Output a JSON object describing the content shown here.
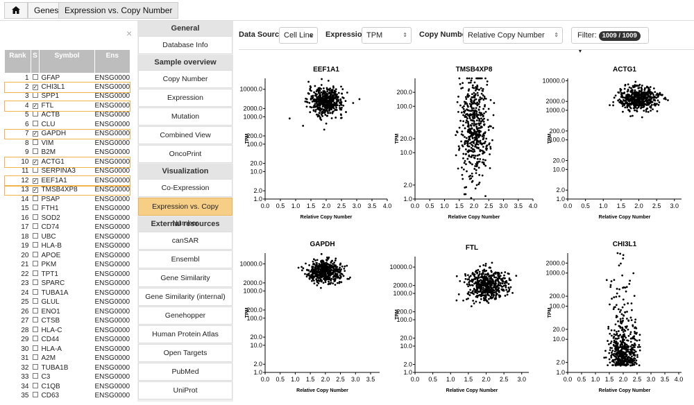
{
  "breadcrumb": {
    "home_icon": "home-icon",
    "items": [
      "Genes",
      "Expression vs. Copy Number"
    ]
  },
  "close_label": "×",
  "table": {
    "headers": [
      "Rank",
      "S",
      "Symbol",
      "Ens"
    ],
    "rows": [
      {
        "rank": "1",
        "checked": false,
        "symbol": "GFAP",
        "ens": "ENSG0000"
      },
      {
        "rank": "2",
        "checked": true,
        "symbol": "CHI3L1",
        "ens": "ENSG0000"
      },
      {
        "rank": "3",
        "checked": false,
        "symbol": "SPP1",
        "ens": "ENSG0000"
      },
      {
        "rank": "4",
        "checked": true,
        "symbol": "FTL",
        "ens": "ENSG0000"
      },
      {
        "rank": "5",
        "checked": false,
        "symbol": "ACTB",
        "ens": "ENSG0000"
      },
      {
        "rank": "6",
        "checked": false,
        "symbol": "CLU",
        "ens": "ENSG0000"
      },
      {
        "rank": "7",
        "checked": true,
        "symbol": "GAPDH",
        "ens": "ENSG0000"
      },
      {
        "rank": "8",
        "checked": false,
        "symbol": "VIM",
        "ens": "ENSG0000"
      },
      {
        "rank": "9",
        "checked": false,
        "symbol": "B2M",
        "ens": "ENSG0000"
      },
      {
        "rank": "10",
        "checked": true,
        "symbol": "ACTG1",
        "ens": "ENSG0000"
      },
      {
        "rank": "11",
        "checked": false,
        "symbol": "SERPINA3",
        "ens": "ENSG0000"
      },
      {
        "rank": "12",
        "checked": true,
        "symbol": "EEF1A1",
        "ens": "ENSG0000"
      },
      {
        "rank": "13",
        "checked": true,
        "symbol": "TMSB4XP8",
        "ens": "ENSG0000"
      },
      {
        "rank": "14",
        "checked": false,
        "symbol": "PSAP",
        "ens": "ENSG0000"
      },
      {
        "rank": "15",
        "checked": false,
        "symbol": "FTH1",
        "ens": "ENSG0000"
      },
      {
        "rank": "16",
        "checked": false,
        "symbol": "SOD2",
        "ens": "ENSG0000"
      },
      {
        "rank": "17",
        "checked": false,
        "symbol": "CD74",
        "ens": "ENSG0000"
      },
      {
        "rank": "18",
        "checked": false,
        "symbol": "UBC",
        "ens": "ENSG0000"
      },
      {
        "rank": "19",
        "checked": false,
        "symbol": "HLA-B",
        "ens": "ENSG0000"
      },
      {
        "rank": "20",
        "checked": false,
        "symbol": "APOE",
        "ens": "ENSG0000"
      },
      {
        "rank": "21",
        "checked": false,
        "symbol": "PKM",
        "ens": "ENSG0000"
      },
      {
        "rank": "22",
        "checked": false,
        "symbol": "TPT1",
        "ens": "ENSG0000"
      },
      {
        "rank": "23",
        "checked": false,
        "symbol": "SPARC",
        "ens": "ENSG0000"
      },
      {
        "rank": "24",
        "checked": false,
        "symbol": "TUBA1A",
        "ens": "ENSG0000"
      },
      {
        "rank": "25",
        "checked": false,
        "symbol": "GLUL",
        "ens": "ENSG0000"
      },
      {
        "rank": "26",
        "checked": false,
        "symbol": "ENO1",
        "ens": "ENSG0000"
      },
      {
        "rank": "27",
        "checked": false,
        "symbol": "CTSB",
        "ens": "ENSG0000"
      },
      {
        "rank": "28",
        "checked": false,
        "symbol": "HLA-C",
        "ens": "ENSG0000"
      },
      {
        "rank": "29",
        "checked": false,
        "symbol": "CD44",
        "ens": "ENSG0000"
      },
      {
        "rank": "30",
        "checked": false,
        "symbol": "HLA-A",
        "ens": "ENSG0000"
      },
      {
        "rank": "31",
        "checked": false,
        "symbol": "A2M",
        "ens": "ENSG0000"
      },
      {
        "rank": "32",
        "checked": false,
        "symbol": "TUBA1B",
        "ens": "ENSG0000"
      },
      {
        "rank": "33",
        "checked": false,
        "symbol": "C3",
        "ens": "ENSG0000"
      },
      {
        "rank": "34",
        "checked": false,
        "symbol": "C1QB",
        "ens": "ENSG0000"
      },
      {
        "rank": "35",
        "checked": false,
        "symbol": "CD63",
        "ens": "ENSG0000"
      }
    ]
  },
  "menu": {
    "sections": [
      {
        "title": "General",
        "items": [
          {
            "label": "Database Info",
            "active": false
          }
        ]
      },
      {
        "title": "Sample overview",
        "items": [
          {
            "label": "Copy Number",
            "active": false
          },
          {
            "label": "Expression",
            "active": false
          },
          {
            "label": "Mutation",
            "active": false
          },
          {
            "label": "Combined View",
            "active": false
          },
          {
            "label": "OncoPrint",
            "active": false
          }
        ]
      },
      {
        "title": "Visualization",
        "items": [
          {
            "label": "Co-Expression",
            "active": false
          },
          {
            "label": "Expression vs. Copy Number",
            "active": true
          }
        ]
      },
      {
        "title": "External resources",
        "items": [
          {
            "label": "canSAR",
            "active": false
          },
          {
            "label": "Ensembl",
            "active": false
          },
          {
            "label": "Gene Similarity",
            "active": false
          },
          {
            "label": "Gene Similarity (internal)",
            "active": false
          },
          {
            "label": "Genehopper",
            "active": false
          },
          {
            "label": "Human Protein Atlas",
            "active": false
          },
          {
            "label": "Open Targets",
            "active": false
          },
          {
            "label": "PubMed",
            "active": false
          },
          {
            "label": "UniProt",
            "active": false
          }
        ]
      }
    ]
  },
  "controls": {
    "data_source_label": "Data Source",
    "data_source_value": "Cell Line",
    "expression_label": "Expression",
    "expression_value": "TPM",
    "copy_number_label": "Copy Number",
    "copy_number_value": "Relative Copy Number",
    "filter_label": "Filter:",
    "filter_badge": "1009 / 1009"
  },
  "chart_data": [
    {
      "type": "scatter",
      "title": "EEF1A1",
      "xlabel": "Relative Copy Number",
      "ylabel": "TPM",
      "xlim": [
        0,
        4.0
      ],
      "ylim": [
        1,
        25000
      ],
      "yscale": "log",
      "xticks": [
        "0.0",
        "0.5",
        "1.0",
        "1.5",
        "2.0",
        "2.5",
        "3.0",
        "3.5",
        "4.0"
      ],
      "yticks": [
        "1.0",
        "2.0",
        "10.0",
        "20.0",
        "100.0",
        "200.0",
        "1000.0",
        "2000.0",
        "10000.0"
      ],
      "cluster": {
        "x_center": 2.0,
        "x_spread": 0.28,
        "y_center": 3500,
        "y_spread": 0.25
      }
    },
    {
      "type": "scatter",
      "title": "TMSB4XP8",
      "xlabel": "Relative Copy Number",
      "ylabel": "TPM",
      "xlim": [
        0,
        4.0
      ],
      "ylim": [
        1,
        400
      ],
      "yscale": "log",
      "xticks": [
        "0.0",
        "0.5",
        "1.0",
        "1.5",
        "2.0",
        "2.5",
        "3.0",
        "3.5",
        "4.0"
      ],
      "yticks": [
        "1.0",
        "2.0",
        "10.0",
        "20.0",
        "100.0",
        "200.0"
      ],
      "cluster": {
        "x_center": 2.0,
        "x_spread": 0.25,
        "y_center": 35,
        "y_spread": 0.55
      }
    },
    {
      "type": "scatter",
      "title": "ACTG1",
      "xlabel": "Relative Copy Number",
      "ylabel": "TPM",
      "xlim": [
        0,
        3.2
      ],
      "ylim": [
        1,
        12000
      ],
      "yscale": "log",
      "xticks": [
        "0.0",
        "0.5",
        "1.0",
        "1.5",
        "2.0",
        "2.5",
        "3.0"
      ],
      "yticks": [
        "1.0",
        "2.0",
        "10.0",
        "20.0",
        "100.0",
        "200.0",
        "1000.0",
        "2000.0",
        "10000.0"
      ],
      "cluster": {
        "x_center": 2.0,
        "x_spread": 0.28,
        "y_center": 2500,
        "y_spread": 0.2
      }
    },
    {
      "type": "scatter",
      "title": "GAPDH",
      "xlabel": "Relative Copy Number",
      "ylabel": "TPM",
      "xlim": [
        0,
        3.8
      ],
      "ylim": [
        1,
        25000
      ],
      "yscale": "log",
      "xticks": [
        "0.0",
        "0.5",
        "1.0",
        "1.5",
        "2.0",
        "2.5",
        "3.0",
        "3.5"
      ],
      "yticks": [
        "1.0",
        "2.0",
        "10.0",
        "20.0",
        "100.0",
        "200.0",
        "1000.0",
        "2000.0",
        "10000.0"
      ],
      "cluster": {
        "x_center": 2.0,
        "x_spread": 0.28,
        "y_center": 5000,
        "y_spread": 0.2
      }
    },
    {
      "type": "scatter",
      "title": "FTL",
      "xlabel": "Relative Copy Number",
      "ylabel": "TPM",
      "xlim": [
        0,
        3.2
      ],
      "ylim": [
        1,
        25000
      ],
      "yscale": "log",
      "xticks": [
        "0.0",
        "0.5",
        "1.0",
        "1.5",
        "2.0",
        "2.5",
        "3.0"
      ],
      "yticks": [
        "1.0",
        "2.0",
        "10.0",
        "20.0",
        "100.0",
        "200.0",
        "1000.0",
        "2000.0",
        "10000.0"
      ],
      "cluster": {
        "x_center": 2.0,
        "x_spread": 0.28,
        "y_center": 2000,
        "y_spread": 0.3
      }
    },
    {
      "type": "scatter",
      "title": "CHI3L1",
      "xlabel": "Relative Copy Number",
      "ylabel": "TPM",
      "xlim": [
        0,
        4.1
      ],
      "ylim": [
        1,
        4000
      ],
      "yscale": "log",
      "xticks": [
        "0.0",
        "0.5",
        "1.0",
        "1.5",
        "2.0",
        "2.5",
        "3.0",
        "3.5",
        "4.0"
      ],
      "yticks": [
        "1.0",
        "2.0",
        "10.0",
        "20.0",
        "100.0",
        "200.0",
        "1000.0",
        "2000.0"
      ],
      "cluster": {
        "x_center": 2.0,
        "x_spread": 0.25,
        "y_center": 1.6,
        "y_spread": 0.5
      }
    }
  ]
}
